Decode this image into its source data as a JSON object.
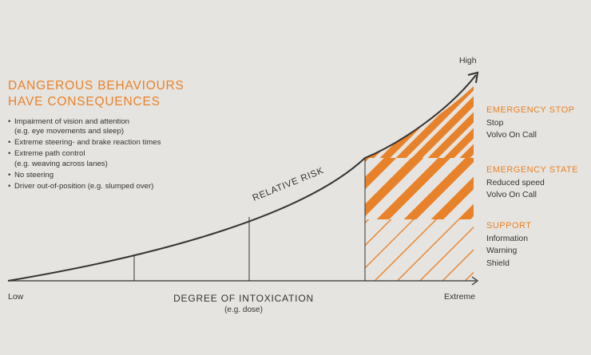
{
  "title_lines": [
    "DANGEROUS BEHAVIOURS",
    "HAVE CONSEQUENCES"
  ],
  "behaviours": [
    {
      "text": "Impairment of vision and attention",
      "sub": "(e.g. eye movements and sleep)"
    },
    {
      "text": "Extreme steering- and brake reaction times",
      "sub": ""
    },
    {
      "text": "Extreme path control",
      "sub": "(e.g. weaving across lanes)"
    },
    {
      "text": "No steering",
      "sub": ""
    },
    {
      "text": "Driver out-of-position (e.g. slumped over)",
      "sub": ""
    }
  ],
  "curve_label": "RELATIVE RISK",
  "y_axis": {
    "top_label": "High"
  },
  "x_axis": {
    "left_label": "Low",
    "right_label": "Extreme",
    "title": "DEGREE OF INTOXICATION",
    "subtitle": "(e.g. dose)"
  },
  "zones": [
    {
      "title": "EMERGENCY STOP",
      "items": [
        "Stop",
        "Volvo On Call"
      ]
    },
    {
      "title": "EMERGENCY STATE",
      "items": [
        "Reduced speed",
        "Volvo On Call"
      ]
    },
    {
      "title": "SUPPORT",
      "items": [
        "Information",
        "Warning",
        "Shield"
      ]
    }
  ],
  "colors": {
    "accent": "#e8822a",
    "line": "#333333",
    "background": "#e6e4e0"
  },
  "icons": {
    "axis_arrow": "arrow-icon"
  }
}
